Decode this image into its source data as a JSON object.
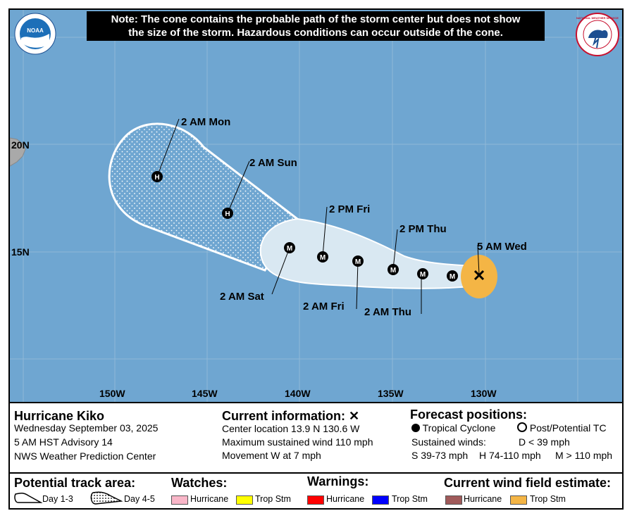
{
  "note": {
    "line1": "Note: The cone contains the probable path of the storm center but does not show",
    "line2": "the size of the storm. Hazardous conditions can occur outside of the cone."
  },
  "logos": {
    "noaa": "NOAA",
    "nws": "NATIONAL WEATHER SERVICE"
  },
  "axes": {
    "longitude_labels": [
      "150W",
      "145W",
      "140W",
      "135W",
      "130W"
    ],
    "latitude_labels": [
      "20N",
      "15N"
    ]
  },
  "forecast_points": [
    {
      "label": "5 AM Wed",
      "type": "X",
      "lon": -130.6,
      "lat": 13.9
    },
    {
      "label": "",
      "type": "M",
      "lon": -132.1,
      "lat": 13.9
    },
    {
      "label": "2 AM Thu",
      "type": "M",
      "lon": -133.5,
      "lat": 14.1
    },
    {
      "label": "2 PM Thu",
      "type": "M",
      "lon": -135.0,
      "lat": 14.3
    },
    {
      "label": "2 AM Fri",
      "type": "M",
      "lon": -136.8,
      "lat": 14.6
    },
    {
      "label": "2 PM Fri",
      "type": "M",
      "lon": -138.7,
      "lat": 14.8
    },
    {
      "label": "2 AM Sat",
      "type": "M",
      "lon": -140.5,
      "lat": 15.2
    },
    {
      "label": "2 AM Sun",
      "type": "H",
      "lon": -143.8,
      "lat": 16.9
    },
    {
      "label": "2 AM Mon",
      "type": "H",
      "lon": -147.5,
      "lat": 18.6
    }
  ],
  "legend": {
    "storm_name": "Hurricane Kiko",
    "date": "Wednesday September 03, 2025",
    "advisory": "5 AM HST Advisory 14",
    "center": "NWS Weather Prediction Center",
    "current_title": "Current information:",
    "center_location": "Center location 13.9 N 130.6 W",
    "max_wind": "Maximum sustained wind 110 mph",
    "movement": "Movement W at 7 mph",
    "forecast_title": "Forecast positions:",
    "tropical_cyclone": "Tropical Cyclone",
    "post_tc": "Post/Potential TC",
    "sustained_winds": "Sustained winds:",
    "d_label": "D < 39 mph",
    "s_label": "S 39-73 mph",
    "h_label": "H 74-110 mph",
    "m_label": "M > 110 mph",
    "track_title": "Potential track area:",
    "day13": "Day 1-3",
    "day45": "Day 4-5",
    "watches_title": "Watches:",
    "watch_hurricane": "Hurricane",
    "watch_trop": "Trop Stm",
    "warnings_title": "Warnings:",
    "warn_hurricane": "Hurricane",
    "warn_trop": "Trop Stm",
    "wind_title": "Current wind field estimate:",
    "wind_hurricane": "Hurricane",
    "wind_trop": "Trop Stm"
  },
  "colors": {
    "ocean": "#6fa6d1",
    "cone_day13": "#d9e8f2",
    "watch_hurricane": "#f9b6c8",
    "watch_trop": "#ffff00",
    "warn_hurricane": "#ff0000",
    "warn_trop": "#0000ff",
    "wind_hurricane": "#a05a5a",
    "wind_trop": "#f4b545"
  }
}
